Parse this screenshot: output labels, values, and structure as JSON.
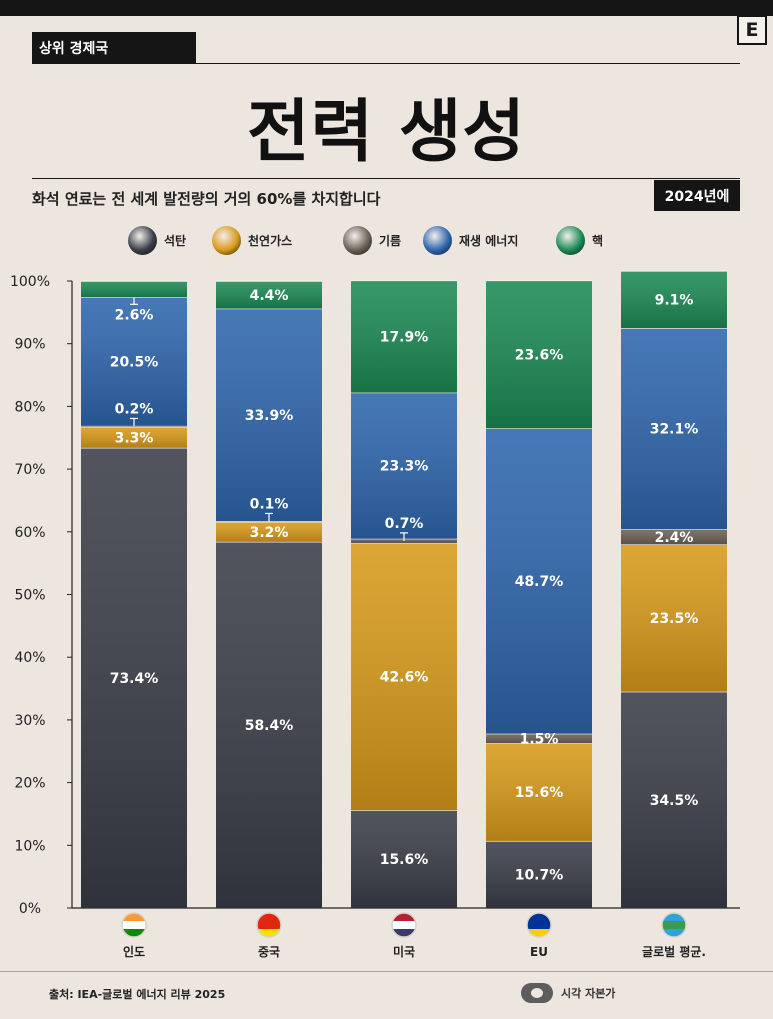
{
  "header": {
    "kicker": "상위 경제국",
    "logo": "E",
    "title": "전력 생성",
    "subtitle": "화석 연료는 전 세계 발전량의 거의 60%를 차지합니다",
    "year_badge": "2024년에"
  },
  "legend": [
    {
      "label": "석탄",
      "color": "#3a3d48"
    },
    {
      "label": "천연가스",
      "color": "#d89a1a"
    },
    {
      "label": "기름",
      "color": "#6b6156"
    },
    {
      "label": "재생 에너지",
      "color": "#2e66ad"
    },
    {
      "label": "핵",
      "color": "#1c8a55"
    }
  ],
  "chart_data": {
    "type": "bar",
    "stacked": true,
    "categories": [
      "인도",
      "중국",
      "미국",
      "EU",
      "글로벌 평균."
    ],
    "series": [
      {
        "name": "석탄",
        "color": "#3a3d48",
        "values": [
          73.4,
          58.4,
          15.6,
          10.7,
          34.5
        ],
        "labels": [
          "73.4%",
          "58.4%",
          "15.6%",
          "10.7%",
          "34.5%"
        ]
      },
      {
        "name": "천연가스",
        "color": "#d89a1a",
        "values": [
          3.3,
          3.2,
          42.6,
          15.6,
          23.5
        ],
        "labels": [
          "3.3%",
          "3.2%",
          "42.6%",
          "15.6%",
          "23.5%"
        ]
      },
      {
        "name": "기름",
        "color": "#6b6156",
        "values": [
          0.2,
          0.1,
          0.7,
          1.5,
          2.4
        ],
        "labels": [
          "0.2%",
          "0.1%",
          "0.7%",
          "1.5%",
          "2.4%"
        ]
      },
      {
        "name": "재생 에너지",
        "color": "#2e66ad",
        "values": [
          20.5,
          33.9,
          23.3,
          48.7,
          32.1
        ],
        "labels": [
          "20.5%",
          "33.9%",
          "23.3%",
          "48.7%",
          "32.1%"
        ]
      },
      {
        "name": "핵",
        "color": "#1c8a55",
        "values": [
          2.6,
          4.4,
          17.9,
          23.6,
          9.1
        ],
        "labels": [
          "2.6%",
          "4.4%",
          "17.9%",
          "23.6%",
          "9.1%"
        ]
      }
    ],
    "y_ticks": [
      "0%",
      "10%",
      "20%",
      "30%",
      "40%",
      "50%",
      "60%",
      "70%",
      "80%",
      "90%",
      "100%"
    ],
    "ylim": [
      0,
      100
    ],
    "flags": [
      "india-flag-icon",
      "china-flag-icon",
      "usa-flag-icon",
      "eu-flag-icon",
      "globe-icon"
    ]
  },
  "footer": {
    "source": "출처: IEA-글로벌 에너지 리뷰 2025",
    "brand": "시각 자본가"
  }
}
